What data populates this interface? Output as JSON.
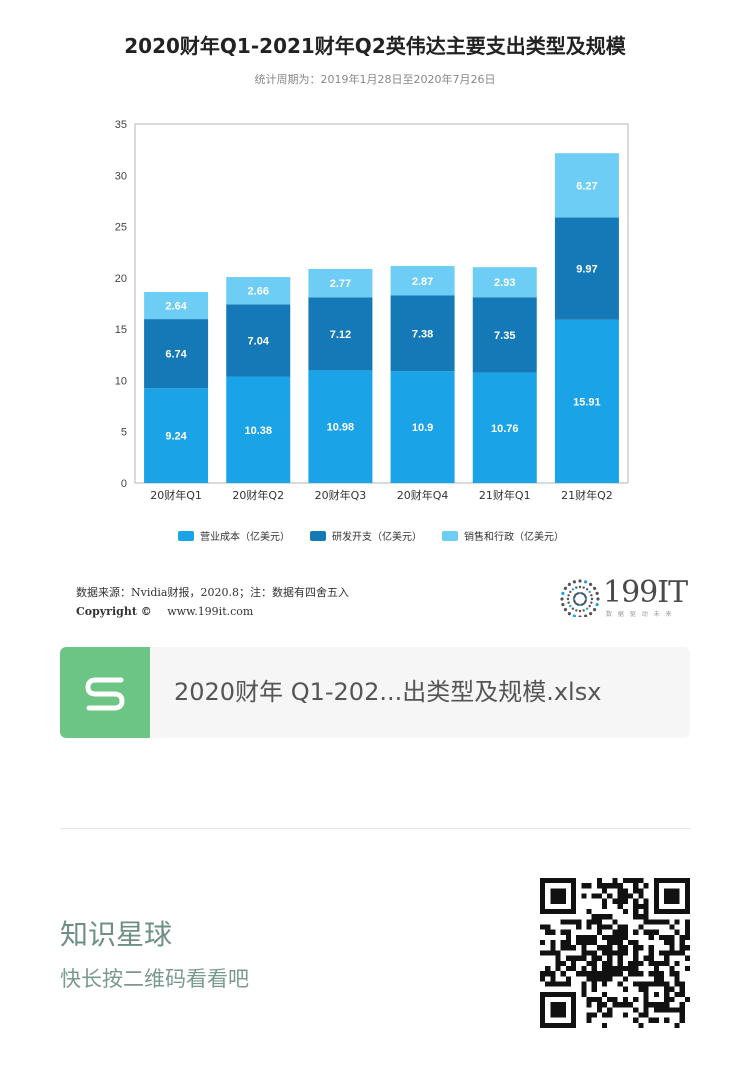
{
  "chart_data": {
    "type": "bar",
    "stacked": true,
    "title": "2020财年Q1-2021财年Q2英伟达主要支出类型及规模",
    "subtitle": "统计周期为：2019年1月28日至2020年7月26日",
    "categories": [
      "20财年Q1",
      "20财年Q2",
      "20财年Q3",
      "20财年Q4",
      "21财年Q1",
      "21财年Q2"
    ],
    "series": [
      {
        "name": "营业成本（亿美元）",
        "color": "#1aa3e6",
        "values": [
          9.24,
          10.38,
          10.98,
          10.9,
          10.76,
          15.91
        ]
      },
      {
        "name": "研发开支（亿美元）",
        "color": "#1479b6",
        "values": [
          6.74,
          7.04,
          7.12,
          7.38,
          7.35,
          9.97
        ]
      },
      {
        "name": "销售和行政（亿美元）",
        "color": "#6dcdf4",
        "values": [
          2.64,
          2.66,
          2.77,
          2.87,
          2.93,
          6.27
        ]
      }
    ],
    "yticks": [
      "0",
      "5",
      "10",
      "15",
      "20",
      "25",
      "30",
      "35"
    ],
    "ylim": [
      0,
      35
    ],
    "xlabel": "",
    "ylabel": "",
    "grid": false,
    "legend_position": "bottom"
  },
  "source": {
    "label": "数据来源：Nvidia财报，2020.8；注：数据有四舍五入",
    "copyright": "Copyright ©",
    "website": "www.199it.com"
  },
  "brand": {
    "name": "199IT",
    "tagline": "数 据 驱 动 未 来"
  },
  "file": {
    "icon": "spreadsheet-s-icon",
    "name": "2020财年 Q1-202...出类型及规模.xlsx",
    "color": "#6cc485"
  },
  "planet": {
    "title": "知识星球",
    "hint": "快长按二维码看看吧"
  }
}
